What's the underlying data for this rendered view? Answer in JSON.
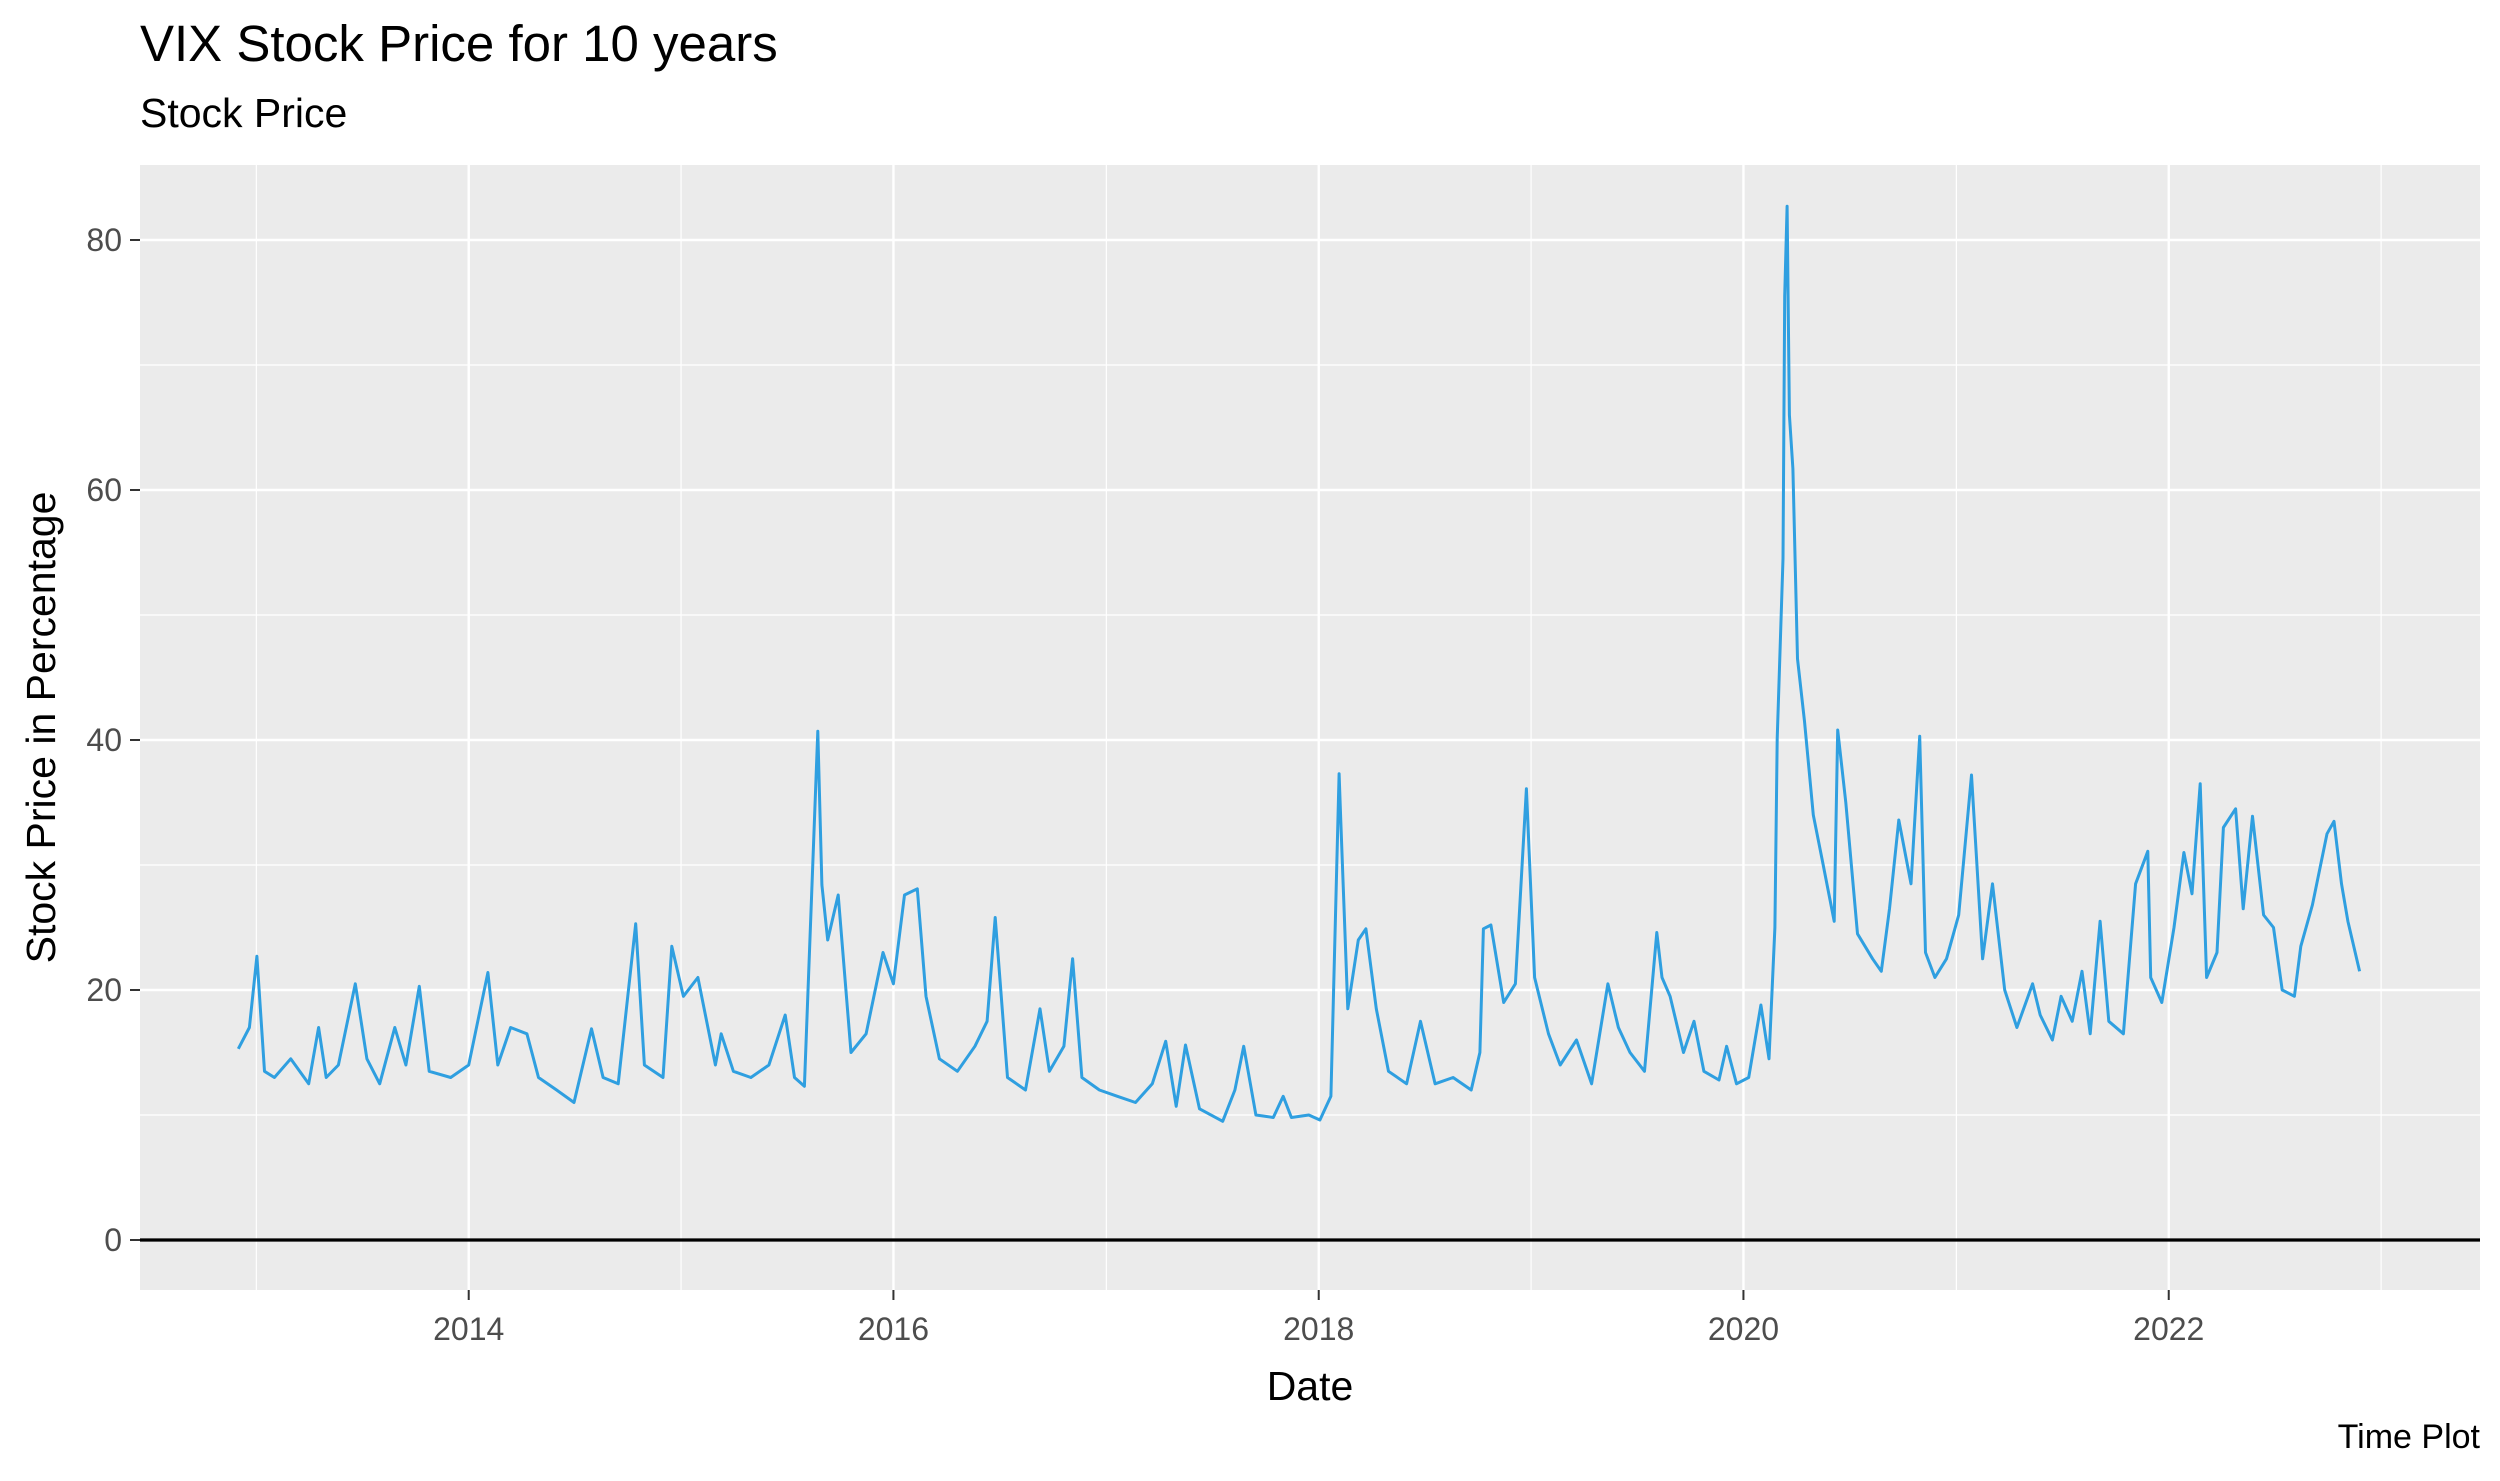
{
  "chart_data": {
    "type": "line",
    "title": "VIX Stock Price for 10 years",
    "subtitle": "Stock Price",
    "caption": "Time Plot",
    "xlabel": "Date",
    "ylabel": "Stock Price in Percentage",
    "xlim": [
      "2012-06-15",
      "2023-06-20"
    ],
    "ylim": [
      -4,
      86
    ],
    "x_ticks": [
      "2014",
      "2016",
      "2018",
      "2020",
      "2022"
    ],
    "y_ticks": [
      0,
      20,
      40,
      60,
      80
    ],
    "hline": 0,
    "grid": true,
    "line_color": "#2f9fe0",
    "series": [
      {
        "x": [
          "2012-12-01",
          "2012-12-20",
          "2013-01-02",
          "2013-01-15",
          "2013-02-01",
          "2013-03-01",
          "2013-04-01",
          "2013-04-18",
          "2013-05-01",
          "2013-05-22",
          "2013-06-20",
          "2013-07-10",
          "2013-08-01",
          "2013-08-27",
          "2013-09-15",
          "2013-10-08",
          "2013-10-25",
          "2013-12-01",
          "2014-01-01",
          "2014-02-03",
          "2014-02-20",
          "2014-03-14",
          "2014-04-11",
          "2014-05-01",
          "2014-06-01",
          "2014-07-01",
          "2014-07-31",
          "2014-08-20",
          "2014-09-15",
          "2014-10-15",
          "2014-10-30",
          "2014-12-01",
          "2014-12-16",
          "2015-01-05",
          "2015-01-30",
          "2015-03-01",
          "2015-03-11",
          "2015-04-01",
          "2015-05-01",
          "2015-06-01",
          "2015-06-29",
          "2015-07-15",
          "2015-08-01",
          "2015-08-24",
          "2015-08-31",
          "2015-09-10",
          "2015-09-28",
          "2015-10-20",
          "2015-11-15",
          "2015-12-14",
          "2016-01-01",
          "2016-01-20",
          "2016-02-11",
          "2016-02-26",
          "2016-03-20",
          "2016-04-20",
          "2016-05-20",
          "2016-06-10",
          "2016-06-24",
          "2016-07-15",
          "2016-08-15",
          "2016-09-09",
          "2016-09-25",
          "2016-10-20",
          "2016-11-04",
          "2016-11-20",
          "2016-12-20",
          "2017-01-20",
          "2017-02-20",
          "2017-03-21",
          "2017-04-13",
          "2017-05-01",
          "2017-05-17",
          "2017-06-10",
          "2017-07-20",
          "2017-08-10",
          "2017-08-25",
          "2017-09-15",
          "2017-10-15",
          "2017-11-01",
          "2017-11-15",
          "2017-12-15",
          "2018-01-03",
          "2018-01-22",
          "2018-02-05",
          "2018-02-08",
          "2018-02-20",
          "2018-03-10",
          "2018-03-23",
          "2018-04-10",
          "2018-05-01",
          "2018-06-01",
          "2018-06-25",
          "2018-07-20",
          "2018-08-20",
          "2018-09-20",
          "2018-10-05",
          "2018-10-11",
          "2018-10-24",
          "2018-11-15",
          "2018-12-05",
          "2018-12-24",
          "2019-01-07",
          "2019-01-31",
          "2019-02-20",
          "2019-03-20",
          "2019-04-15",
          "2019-05-13",
          "2019-05-31",
          "2019-06-20",
          "2019-07-15",
          "2019-08-05",
          "2019-08-14",
          "2019-08-28",
          "2019-09-20",
          "2019-10-08",
          "2019-10-25",
          "2019-11-20",
          "2019-12-03",
          "2019-12-20",
          "2020-01-10",
          "2020-01-31",
          "2020-02-14",
          "2020-02-24",
          "2020-02-28",
          "2020-03-09",
          "2020-03-12",
          "2020-03-16",
          "2020-03-20",
          "2020-03-26",
          "2020-04-03",
          "2020-04-15",
          "2020-04-30",
          "2020-05-15",
          "2020-06-05",
          "2020-06-11",
          "2020-06-25",
          "2020-07-15",
          "2020-08-10",
          "2020-08-25",
          "2020-09-08",
          "2020-09-24",
          "2020-10-15",
          "2020-10-30",
          "2020-11-09",
          "2020-11-25",
          "2020-12-15",
          "2021-01-05",
          "2021-01-27",
          "2021-02-15",
          "2021-03-04",
          "2021-03-25",
          "2021-04-15",
          "2021-05-12",
          "2021-05-25",
          "2021-06-15",
          "2021-06-30",
          "2021-07-19",
          "2021-08-05",
          "2021-08-19",
          "2021-09-05",
          "2021-09-20",
          "2021-10-15",
          "2021-11-05",
          "2021-11-26",
          "2021-12-01",
          "2021-12-20",
          "2022-01-10",
          "2022-01-27",
          "2022-02-10",
          "2022-02-24",
          "2022-03-07",
          "2022-03-25",
          "2022-04-05",
          "2022-04-26",
          "2022-05-09",
          "2022-05-25",
          "2022-06-13",
          "2022-06-30",
          "2022-07-15",
          "2022-08-05",
          "2022-08-16",
          "2022-09-05",
          "2022-09-30",
          "2022-10-12",
          "2022-10-25",
          "2022-11-05",
          "2022-11-25"
        ],
        "y": [
          15.3,
          17.0,
          22.7,
          13.5,
          13.0,
          14.5,
          12.5,
          17.0,
          13.0,
          14.0,
          20.5,
          14.5,
          12.5,
          17.0,
          14.0,
          20.3,
          13.5,
          13.0,
          14.0,
          21.4,
          14.0,
          17.0,
          16.5,
          13.0,
          12.0,
          11.0,
          16.9,
          13.0,
          12.5,
          25.3,
          14.0,
          13.0,
          23.5,
          19.5,
          21.0,
          14.0,
          16.5,
          13.5,
          13.0,
          14.0,
          18.0,
          13.0,
          12.3,
          40.7,
          28.4,
          24.0,
          27.6,
          15.0,
          16.5,
          23.0,
          20.5,
          27.6,
          28.1,
          19.5,
          14.5,
          13.5,
          15.5,
          17.5,
          25.8,
          13.0,
          12.0,
          18.5,
          13.5,
          15.5,
          22.5,
          13.0,
          12.0,
          11.5,
          11.0,
          12.5,
          15.9,
          10.7,
          15.6,
          10.5,
          9.5,
          12.0,
          15.5,
          10.0,
          9.8,
          11.5,
          9.8,
          10.0,
          9.6,
          11.5,
          37.3,
          33.5,
          18.5,
          24.0,
          24.9,
          18.5,
          13.5,
          12.5,
          17.5,
          12.5,
          13.0,
          12.0,
          15.0,
          24.9,
          25.2,
          19.0,
          20.5,
          36.1,
          21.0,
          16.5,
          14.0,
          16.0,
          12.5,
          20.5,
          17.0,
          15.0,
          13.5,
          24.6,
          21.0,
          19.5,
          15.0,
          17.5,
          13.5,
          12.8,
          15.5,
          12.5,
          13.0,
          18.8,
          14.5,
          25.0,
          40.1,
          54.5,
          75.5,
          82.7,
          66.0,
          61.7,
          46.5,
          41.5,
          34.0,
          30.5,
          25.5,
          40.8,
          35.0,
          24.5,
          22.5,
          21.5,
          26.5,
          33.6,
          28.5,
          40.3,
          23.0,
          21.0,
          22.5,
          26.0,
          37.2,
          22.5,
          28.5,
          20.0,
          17.0,
          20.5,
          18.0,
          16.0,
          19.5,
          17.5,
          21.5,
          16.5,
          25.5,
          17.5,
          16.5,
          28.5,
          31.1,
          21.0,
          19.0,
          25.0,
          31.0,
          27.7,
          36.5,
          21.0,
          23.0,
          33.0,
          34.5,
          26.5,
          33.9,
          26.0,
          25.0,
          20.0,
          19.5,
          23.5,
          26.8,
          32.5,
          33.5,
          28.5,
          25.5,
          21.5
        ]
      }
    ]
  }
}
